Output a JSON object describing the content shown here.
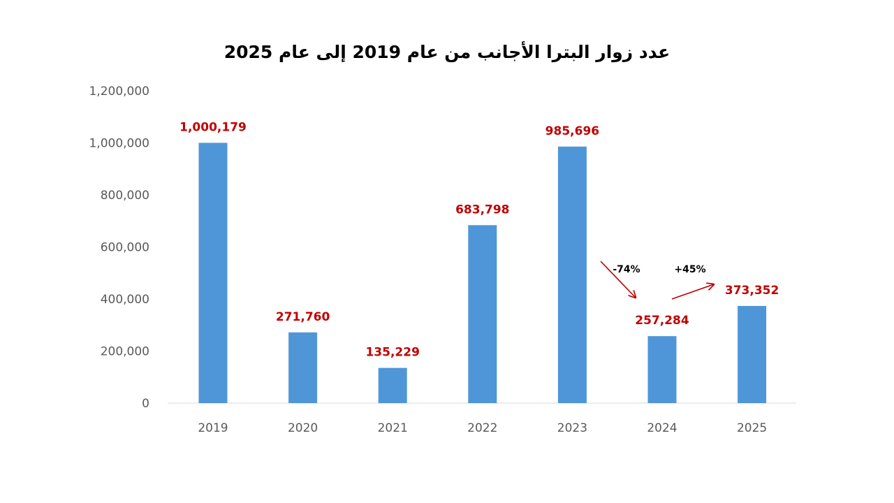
{
  "chart_data": {
    "type": "bar",
    "title": "عدد زوار البترا الأجانب من عام 2019  إلى عام 2025",
    "categories": [
      "2019",
      "2020",
      "2021",
      "2022",
      "2023",
      "2024",
      "2025"
    ],
    "values": [
      1000179,
      271760,
      135229,
      683798,
      985696,
      257284,
      373352
    ],
    "data_labels": [
      "1,000,179",
      "271,760",
      "135,229",
      "683,798",
      "985,696",
      "257,284",
      "373,352"
    ],
    "ylim": [
      0,
      1200000
    ],
    "yticks": [
      0,
      200000,
      400000,
      600000,
      800000,
      1000000,
      1200000
    ],
    "ytick_labels": [
      "0",
      "200,000",
      "400,000",
      "600,000",
      "800,000",
      "1,000,000",
      "1,200,000"
    ],
    "xlabel": "",
    "ylabel": "",
    "grid": false,
    "legend": "none",
    "annotations": [
      {
        "text": "-74%",
        "from": "2023",
        "to": "2024",
        "direction": "down"
      },
      {
        "text": "+45%",
        "from": "2024",
        "to": "2025",
        "direction": "up"
      }
    ],
    "colors": {
      "bar": "#4F96D9",
      "data_label": "#C00000",
      "arrow": "#C00000",
      "axis": "#D9D9D9"
    }
  }
}
